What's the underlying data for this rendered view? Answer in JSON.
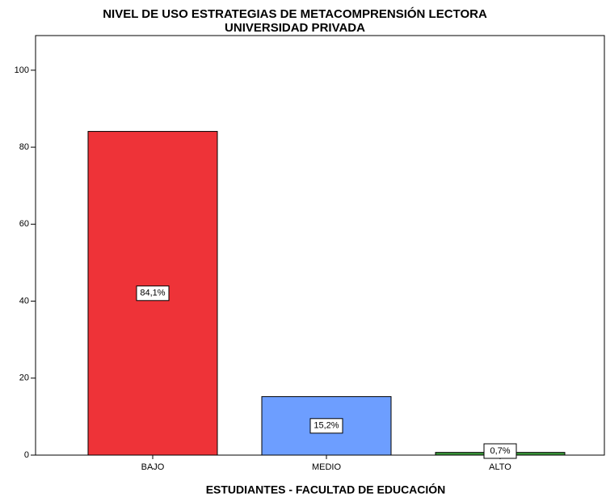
{
  "chart_data": {
    "type": "bar",
    "title": "NIVEL DE USO ESTRATEGIAS DE METACOMPRENSIÓN LECTORA",
    "subtitle": "UNIVERSIDAD PRIVADA",
    "x_label": "ESTUDIANTES - FACULTAD DE EDUCACIÓN",
    "categories": [
      "BAJO",
      "MEDIO",
      "ALTO"
    ],
    "values": [
      84.1,
      15.2,
      0.7
    ],
    "value_labels": [
      "84,1%",
      "15,2%",
      "0,7%"
    ],
    "colors": [
      "#ee3338",
      "#6d9eff",
      "#3a9a3a"
    ],
    "ylim": [
      0,
      109
    ],
    "yticks": [
      0,
      20,
      40,
      60,
      80,
      100
    ],
    "grid": false
  }
}
